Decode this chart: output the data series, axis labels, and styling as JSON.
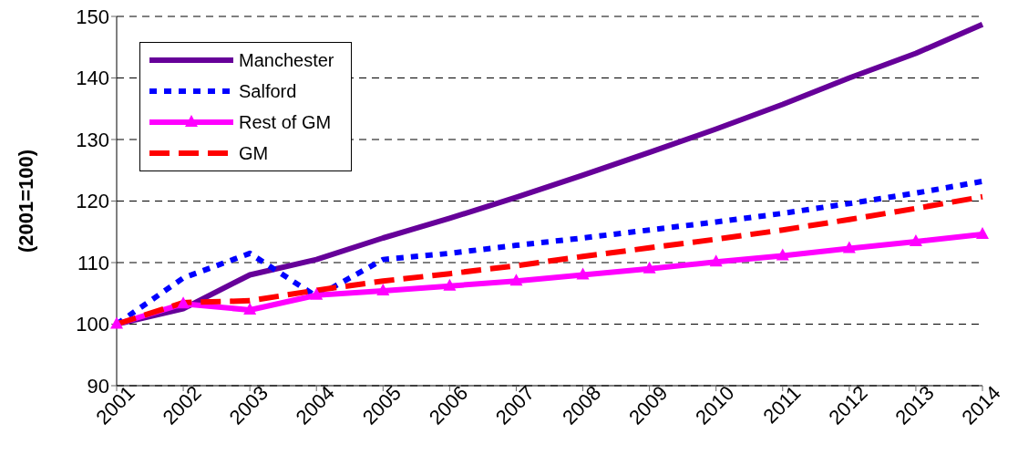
{
  "chart_data": {
    "type": "line",
    "ylabel": "(2001=100)",
    "categories": [
      "2001",
      "2002",
      "2003",
      "2004",
      "2005",
      "2006",
      "2007",
      "2008",
      "2009",
      "2010",
      "2011",
      "2012",
      "2013",
      "2014"
    ],
    "series": [
      {
        "name": "Manchester",
        "color": "#660099",
        "line_style": "solid",
        "marker": "none",
        "values": [
          100,
          102.5,
          108,
          110.5,
          114,
          117.2,
          120.6,
          124.2,
          127.9,
          131.7,
          135.7,
          140,
          144,
          148.7
        ]
      },
      {
        "name": "Salford",
        "color": "#0000ff",
        "line_style": "dotted",
        "marker": "none",
        "values": [
          100,
          107.5,
          111.5,
          104.5,
          110.5,
          111.5,
          112.8,
          114,
          115.3,
          116.6,
          118,
          119.6,
          121.3,
          123.2
        ]
      },
      {
        "name": "Rest of GM",
        "color": "#ff00ff",
        "line_style": "solid",
        "marker": "triangle",
        "values": [
          100,
          103.3,
          102.3,
          104.7,
          105.4,
          106.2,
          107,
          108,
          109,
          110.1,
          111.1,
          112.3,
          113.4,
          114.6
        ]
      },
      {
        "name": "GM",
        "color": "#ff0000",
        "line_style": "dashed",
        "marker": "none",
        "values": [
          100,
          103.5,
          103.8,
          105.5,
          107,
          108.2,
          109.5,
          111,
          112.4,
          113.8,
          115.3,
          117,
          118.8,
          120.7
        ]
      }
    ],
    "ylim": [
      90,
      150
    ],
    "yticks": [
      90,
      100,
      110,
      120,
      130,
      140,
      150
    ],
    "grid": "y",
    "legend": "top left"
  }
}
